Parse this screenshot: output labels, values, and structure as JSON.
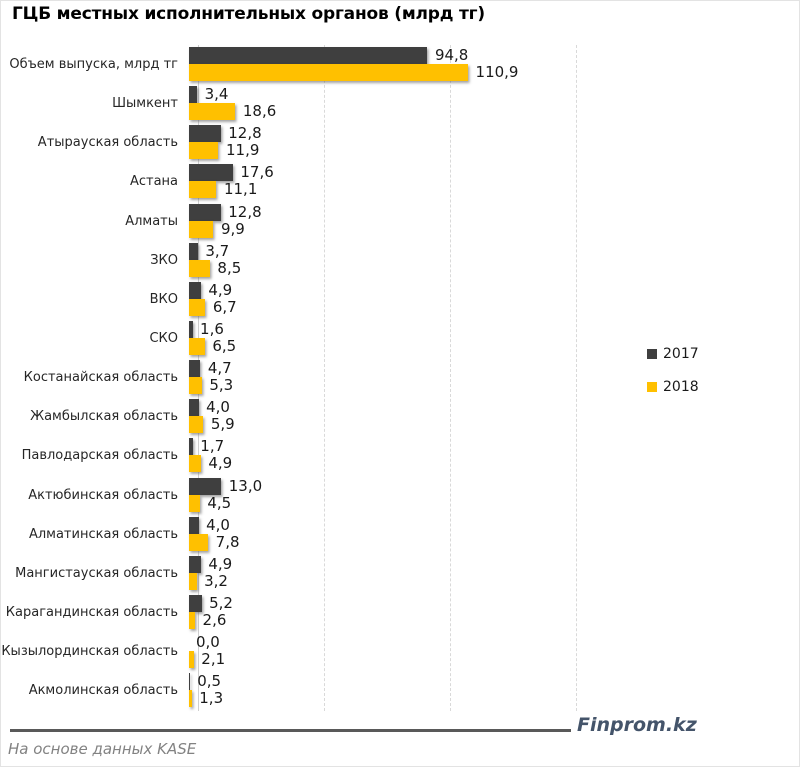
{
  "title": "ГЦБ местных исполнительных органов (млрд тг)",
  "footer": {
    "source_note": "На основе данных KASE",
    "logo": "Finprom.kz"
  },
  "colors": {
    "series_2017": "#3f3f3f",
    "series_2018": "#FFC000",
    "gridline": "#d9d9d9",
    "category_label": "#262626",
    "value_label": "#1a1a1a",
    "footer_rule": "#595959",
    "logo_text": "#44546A"
  },
  "chart_data": {
    "type": "bar",
    "orientation": "horizontal",
    "title": "ГЦБ местных исполнительных органов (млрд тг)",
    "xlabel": "",
    "ylabel": "",
    "xlim": [
      0,
      169
    ],
    "gridlines": [
      50,
      100,
      150
    ],
    "grid_style": "dashed-vertical",
    "legend_position": "right",
    "decimal_separator": ",",
    "categories": [
      "Объем выпуска, млрд тг",
      "Шымкент",
      "Атырауская область",
      "Астана",
      "Алматы",
      "ЗКО",
      "ВКО",
      "СКО",
      "Костанайская область",
      "Жамбылская область",
      "Павлодарская область",
      "Актюбинская область",
      "Алматинская область",
      "Мангистауская область",
      "Карагандинская область",
      "Кызылординская область",
      "Акмолинская область"
    ],
    "series": [
      {
        "name": "2017",
        "color": "#3f3f3f",
        "values": [
          94.8,
          3.4,
          12.8,
          17.6,
          12.8,
          3.7,
          4.9,
          1.6,
          4.7,
          4.0,
          1.7,
          13.0,
          4.0,
          4.9,
          5.2,
          0.0,
          0.5
        ]
      },
      {
        "name": "2018",
        "color": "#FFC000",
        "values": [
          110.9,
          18.6,
          11.9,
          11.1,
          9.9,
          8.5,
          6.7,
          6.5,
          5.3,
          5.9,
          4.9,
          4.5,
          7.8,
          3.2,
          2.6,
          2.1,
          1.3
        ]
      }
    ]
  }
}
